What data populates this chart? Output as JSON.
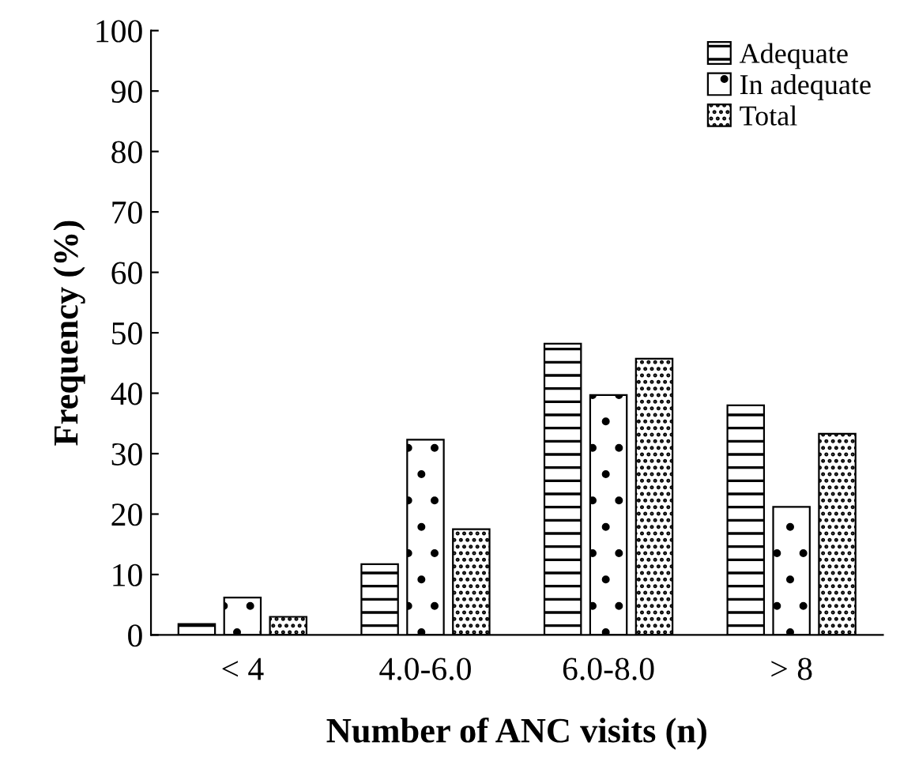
{
  "chart_data": {
    "type": "bar",
    "xlabel": "Number of ANC visits (n)",
    "ylabel": "Frequency (%)",
    "categories": [
      "< 4",
      "4.0-6.0",
      "6.0-8.0",
      "> 8"
    ],
    "series": [
      {
        "name": "Adequate",
        "color": "#000000",
        "values": [
          1.8,
          11.7,
          48.2,
          38.0
        ]
      },
      {
        "name": "In adequate",
        "color": "#000000",
        "values": [
          6.2,
          32.3,
          39.7,
          21.2
        ]
      },
      {
        "name": "Total",
        "color": "#000000",
        "values": [
          3.0,
          17.5,
          45.7,
          33.3
        ]
      }
    ],
    "ylim": [
      0,
      100
    ],
    "yticks": [
      0,
      10,
      20,
      30,
      40,
      50,
      60,
      70,
      80,
      90,
      100
    ],
    "grid": false,
    "legend": "top right"
  }
}
